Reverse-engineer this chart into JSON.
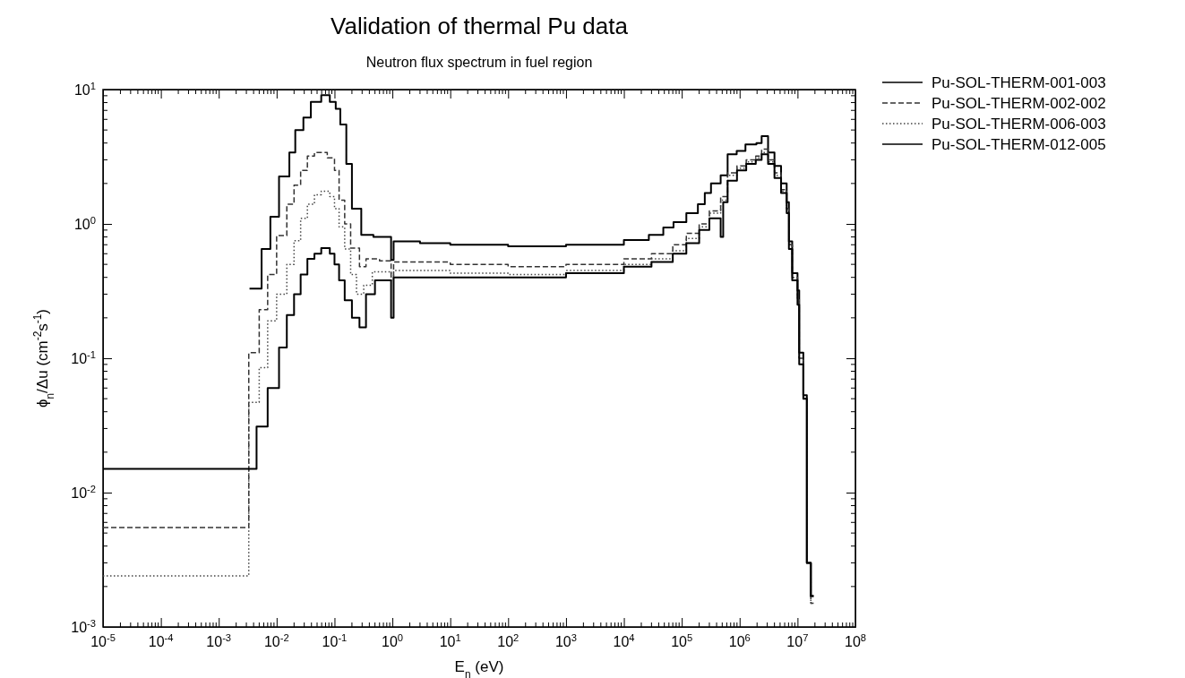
{
  "chart_data": {
    "type": "step",
    "title": "Validation of thermal Pu data",
    "subtitle": "Neutron flux spectrum in fuel region",
    "xlabel": "E$_{n}$ (eV)",
    "ylabel": "ϕ$_{n}$/Δu (cm$^{-2}$s$^{-1}$)",
    "log": "xy",
    "grid": false,
    "legend": "top right",
    "xlim": [
      1e-05,
      100000000.0
    ],
    "ylim": [
      0.001,
      10
    ],
    "xticks": [
      {
        "value": 1e-05,
        "label": "10$^{-5}$"
      },
      {
        "value": 0.0001,
        "label": "10$^{-4}$"
      },
      {
        "value": 0.001,
        "label": "10$^{-3}$"
      },
      {
        "value": 0.01,
        "label": "10$^{-2}$"
      },
      {
        "value": 0.1,
        "label": "10$^{-1}$"
      },
      {
        "value": 1,
        "label": "10$^{0}$"
      },
      {
        "value": 10,
        "label": "10$^{1}$"
      },
      {
        "value": 100,
        "label": "10$^{2}$"
      },
      {
        "value": 1000,
        "label": "10$^{3}$"
      },
      {
        "value": 10000.0,
        "label": "10$^{4}$"
      },
      {
        "value": 100000.0,
        "label": "10$^{5}$"
      },
      {
        "value": 1000000.0,
        "label": "10$^{6}$"
      },
      {
        "value": 10000000.0,
        "label": "10$^{7}$"
      },
      {
        "value": 100000000.0,
        "label": "10$^{8}$"
      }
    ],
    "yticks": [
      {
        "value": 0.001,
        "label": "10$^{-3}$"
      },
      {
        "value": 0.01,
        "label": "10$^{-2}$"
      },
      {
        "value": 0.1,
        "label": "10$^{-1}$"
      },
      {
        "value": 1,
        "label": "10$^{0}$"
      },
      {
        "value": 10,
        "label": "10$^{1}$"
      }
    ],
    "series": [
      {
        "name": "Pu-SOL-THERM-001-003",
        "color": "#000000",
        "line_style": "solid",
        "x": [
          0.0034,
          0.0055,
          0.0078,
          0.011,
          0.0166,
          0.021,
          0.029,
          0.039,
          0.059,
          0.083,
          0.105,
          0.126,
          0.16,
          0.2,
          0.29,
          0.47,
          0.95,
          1.05,
          3,
          10,
          100,
          1000,
          10000.0,
          27000.0,
          48000.0,
          72000.0,
          120000.0,
          190000.0,
          250000.0,
          320000.0,
          470000.0,
          620000.0,
          890000.0,
          1260000.0,
          1950000.0,
          2400000.0,
          3100000.0,
          4000000.0,
          5200000.0,
          6500000.0,
          7100000.0,
          8100000.0,
          10000000.0,
          10700000.0,
          12600000.0,
          14500000.0,
          17000000.0,
          19000000.0
        ],
        "values": [
          0.33,
          0.65,
          1.13,
          2.26,
          3.4,
          5.0,
          6.2,
          8.1,
          9.1,
          8.1,
          7.2,
          5.5,
          2.8,
          1.3,
          0.83,
          0.8,
          0.54,
          0.74,
          0.72,
          0.7,
          0.68,
          0.7,
          0.76,
          0.83,
          0.94,
          1.03,
          1.2,
          1.4,
          1.7,
          2.0,
          2.3,
          3.3,
          3.5,
          3.9,
          4.0,
          4.5,
          3.4,
          2.7,
          2.0,
          1.45,
          0.74,
          0.43,
          0.32,
          0.11,
          0.053,
          0.003,
          0.0017,
          0.0017
        ]
      },
      {
        "name": "Pu-SOL-THERM-002-002",
        "color": "#333333",
        "line_style": "dashed",
        "x": [
          1e-05,
          0.0033,
          0.005,
          0.007,
          0.01,
          0.015,
          0.02,
          0.026,
          0.034,
          0.045,
          0.075,
          0.1,
          0.12,
          0.15,
          0.19,
          0.27,
          0.35,
          0.6,
          0.95,
          1.05,
          10,
          100,
          1000,
          10000.0,
          30000.0,
          70000.0,
          120000.0,
          200000.0,
          300000.0,
          470000.0,
          620000.0,
          900000.0,
          1300000.0,
          1900000.0,
          2400000.0,
          3100000.0,
          4000000.0,
          5200000.0,
          6500000.0,
          7100000.0,
          8100000.0,
          10000000.0,
          10700000.0,
          12600000.0,
          14500000.0,
          17000000.0,
          19000000.0
        ],
        "values": [
          0.0055,
          0.11,
          0.23,
          0.42,
          0.82,
          1.4,
          1.94,
          2.5,
          3.2,
          3.4,
          3.1,
          2.5,
          1.5,
          1.0,
          0.66,
          0.48,
          0.55,
          0.53,
          0.4,
          0.52,
          0.5,
          0.48,
          0.5,
          0.55,
          0.6,
          0.7,
          0.85,
          1.0,
          1.25,
          1.6,
          2.4,
          2.7,
          3.0,
          3.2,
          3.6,
          3.0,
          2.4,
          1.8,
          1.3,
          0.7,
          0.4,
          0.28,
          0.1,
          0.05,
          0.003,
          0.0015,
          0.0015
        ]
      },
      {
        "name": "Pu-SOL-THERM-006-003",
        "color": "#444444",
        "line_style": "dotted",
        "x": [
          1e-05,
          0.0033,
          0.005,
          0.007,
          0.01,
          0.015,
          0.02,
          0.026,
          0.034,
          0.045,
          0.059,
          0.083,
          0.1,
          0.12,
          0.15,
          0.19,
          0.24,
          0.32,
          0.45,
          0.95,
          1.05,
          10,
          100,
          1000,
          10000.0,
          30000.0,
          70000.0,
          120000.0,
          200000.0,
          300000.0,
          470000.0,
          620000.0,
          900000.0,
          1300000.0,
          1900000.0,
          2400000.0,
          3100000.0,
          4000000.0,
          5200000.0,
          6500000.0,
          7100000.0,
          8100000.0,
          10000000.0,
          10700000.0,
          12600000.0,
          14500000.0,
          17000000.0,
          19000000.0
        ],
        "values": [
          0.0024,
          0.047,
          0.085,
          0.19,
          0.3,
          0.5,
          0.75,
          1.1,
          1.4,
          1.65,
          1.75,
          1.6,
          1.3,
          0.95,
          0.65,
          0.42,
          0.3,
          0.35,
          0.44,
          0.38,
          0.45,
          0.43,
          0.42,
          0.45,
          0.5,
          0.55,
          0.63,
          0.78,
          0.95,
          1.2,
          1.5,
          2.3,
          2.6,
          2.9,
          3.1,
          3.4,
          2.9,
          2.3,
          1.75,
          1.3,
          0.7,
          0.4,
          0.27,
          0.1,
          0.05,
          0.003,
          0.0015,
          0.0015
        ]
      },
      {
        "name": "Pu-SOL-THERM-012-005",
        "color": "#000000",
        "line_style": "solid",
        "x": [
          1e-05,
          0.0045,
          0.007,
          0.011,
          0.015,
          0.02,
          0.026,
          0.034,
          0.045,
          0.059,
          0.083,
          0.1,
          0.12,
          0.15,
          0.2,
          0.27,
          0.35,
          0.5,
          0.95,
          1.05,
          10,
          100,
          1000,
          10000.0,
          30000.0,
          70000.0,
          120000.0,
          200000.0,
          300000.0,
          470000.0,
          520000.0,
          620000.0,
          900000.0,
          1300000.0,
          1900000.0,
          2400000.0,
          3100000.0,
          4000000.0,
          5200000.0,
          6500000.0,
          7100000.0,
          8100000.0,
          10000000.0,
          10700000.0,
          12600000.0,
          14500000.0,
          17000000.0,
          19000000.0
        ],
        "values": [
          0.015,
          0.031,
          0.06,
          0.12,
          0.21,
          0.3,
          0.42,
          0.55,
          0.6,
          0.66,
          0.6,
          0.5,
          0.38,
          0.27,
          0.2,
          0.17,
          0.3,
          0.38,
          0.2,
          0.4,
          0.4,
          0.4,
          0.43,
          0.48,
          0.52,
          0.6,
          0.72,
          0.9,
          1.1,
          0.8,
          1.45,
          2.1,
          2.5,
          2.8,
          3.0,
          3.3,
          2.8,
          2.2,
          1.7,
          1.2,
          0.65,
          0.38,
          0.25,
          0.09,
          0.05,
          0.003,
          0.0017,
          0.0017
        ]
      }
    ]
  }
}
